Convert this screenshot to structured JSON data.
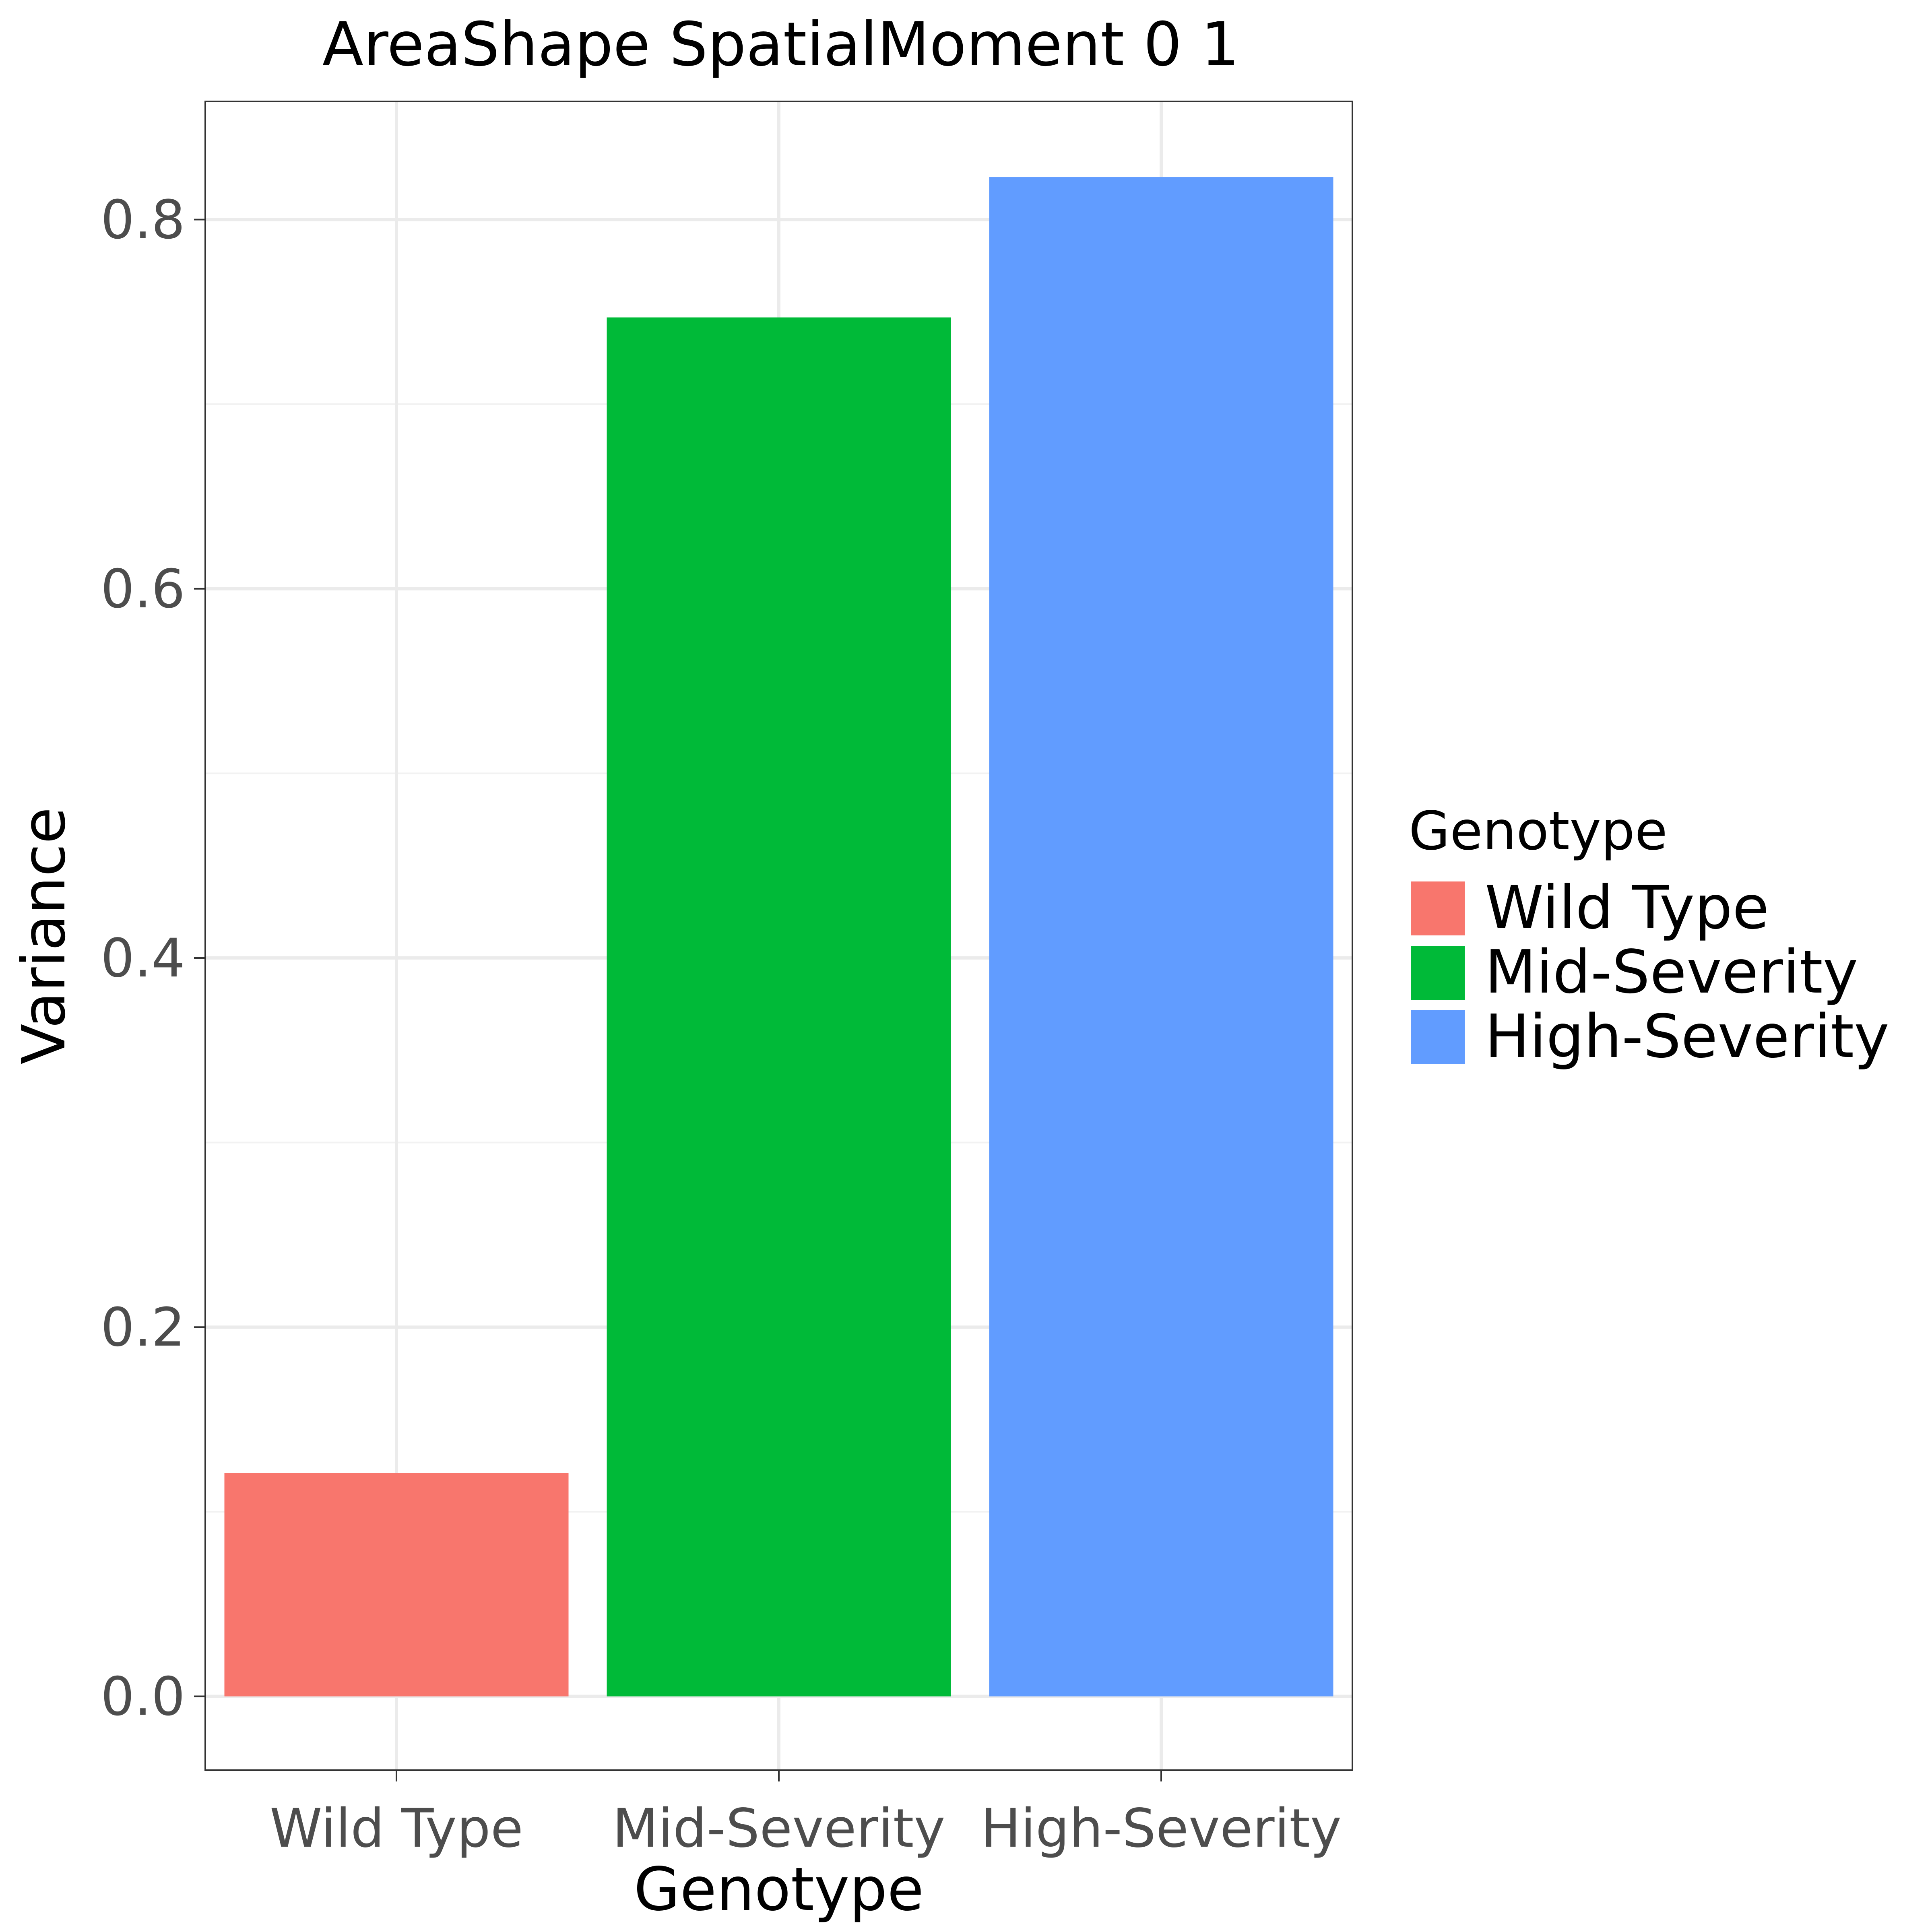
{
  "chart_data": {
    "type": "bar",
    "title": "AreaShape SpatialMoment 0 1",
    "xlabel": "Genotype",
    "ylabel": "Variance",
    "categories": [
      "Wild Type",
      "Mid-Severity",
      "High-Severity"
    ],
    "values": [
      0.121,
      0.747,
      0.823
    ],
    "colors": [
      "#F8766D",
      "#00BA38",
      "#619CFF"
    ],
    "ylim": [
      -0.04,
      0.864
    ],
    "yticks": [
      0.0,
      0.2,
      0.4,
      0.6,
      0.8
    ],
    "ytick_labels": [
      "0.0",
      "0.2",
      "0.4",
      "0.6",
      "0.8"
    ],
    "grid": true,
    "legend": {
      "title": "Genotype",
      "placement": "right",
      "entries": [
        "Wild Type",
        "Mid-Severity",
        "High-Severity"
      ]
    }
  }
}
